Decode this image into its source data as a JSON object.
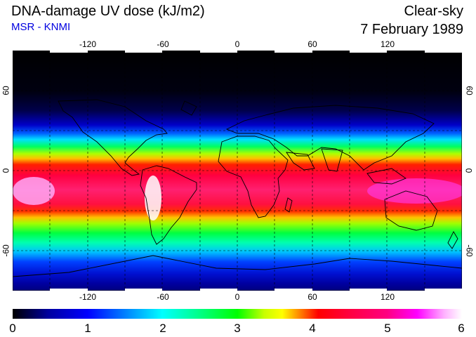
{
  "header": {
    "title": "DNA-damage UV dose (kJ/m2)",
    "source": "MSR - KNMI",
    "condition": "Clear-sky",
    "date": "7 February 1989"
  },
  "map": {
    "projection": "equirectangular",
    "lon_range": [
      -180,
      180
    ],
    "lat_range": [
      -90,
      90
    ],
    "lon_ticks": [
      "-120",
      "-60",
      "0",
      "60",
      "120"
    ],
    "lat_ticks": [
      "60",
      "0",
      "-60"
    ],
    "gridlines": "dashed",
    "coastlines": true
  },
  "colorbar": {
    "min": 0,
    "max": 6,
    "ticks": [
      "0",
      "1",
      "2",
      "3",
      "4",
      "5",
      "6"
    ],
    "colors": [
      "#000000",
      "#0000ff",
      "#00ffff",
      "#00ff00",
      "#ffff00",
      "#ff0000",
      "#ff00ff",
      "#ffffff"
    ]
  }
}
